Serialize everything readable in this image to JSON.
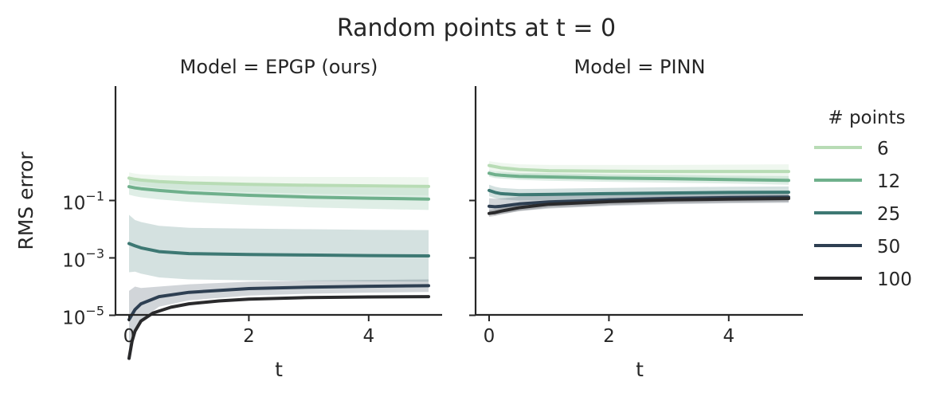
{
  "figure_title": "Random points at t = 0",
  "chart_data": [
    {
      "type": "line",
      "panel_title": "Model = EPGP (ours)",
      "xlabel": "t",
      "ylabel": "RMS error",
      "y_scale": "log",
      "xlim": [
        -0.25,
        5.25
      ],
      "ylim_log10": [
        -6.8,
        0.9
      ],
      "x_ticks": [
        0,
        2,
        4
      ],
      "y_ticks": [
        {
          "base": "10",
          "exp": "−1",
          "log10": -1
        },
        {
          "base": "10",
          "exp": "−3",
          "log10": -3
        },
        {
          "base": "10",
          "exp": "−5",
          "log10": -5
        }
      ],
      "series": [
        {
          "name": "6",
          "color": "#b8dcb5",
          "points": [
            [
              0,
              -0.22
            ],
            [
              0.1,
              -0.26
            ],
            [
              0.2,
              -0.29
            ],
            [
              0.5,
              -0.34
            ],
            [
              1,
              -0.39
            ],
            [
              2,
              -0.44
            ],
            [
              3,
              -0.47
            ],
            [
              4,
              -0.49
            ],
            [
              5,
              -0.51
            ]
          ],
          "band": [
            0.2,
            0.2,
            0.2,
            0.22,
            0.24,
            0.27,
            0.29,
            0.31,
            0.32
          ]
        },
        {
          "name": "12",
          "color": "#6fb08c",
          "points": [
            [
              0,
              -0.52
            ],
            [
              0.1,
              -0.56
            ],
            [
              0.2,
              -0.59
            ],
            [
              0.5,
              -0.65
            ],
            [
              1,
              -0.73
            ],
            [
              2,
              -0.82
            ],
            [
              3,
              -0.88
            ],
            [
              4,
              -0.92
            ],
            [
              5,
              -0.95
            ]
          ],
          "band": [
            0.28,
            0.29,
            0.3,
            0.31,
            0.32,
            0.34,
            0.36,
            0.37,
            0.38
          ]
        },
        {
          "name": "25",
          "color": "#3d7873",
          "points": [
            [
              0,
              -2.5
            ],
            [
              0.1,
              -2.58
            ],
            [
              0.2,
              -2.65
            ],
            [
              0.5,
              -2.78
            ],
            [
              1,
              -2.85
            ],
            [
              2,
              -2.88
            ],
            [
              3,
              -2.9
            ],
            [
              4,
              -2.92
            ],
            [
              5,
              -2.93
            ]
          ],
          "band": [
            1.0,
            0.9,
            0.9,
            0.9,
            0.9,
            0.9,
            0.9,
            0.9,
            0.9
          ]
        },
        {
          "name": "50",
          "color": "#2e3f52",
          "points": [
            [
              0,
              -5.15
            ],
            [
              0.1,
              -4.8
            ],
            [
              0.2,
              -4.6
            ],
            [
              0.5,
              -4.35
            ],
            [
              1,
              -4.2
            ],
            [
              2,
              -4.07
            ],
            [
              3,
              -4.02
            ],
            [
              4,
              -3.99
            ],
            [
              5,
              -3.97
            ]
          ],
          "band": [
            1.0,
            0.8,
            0.55,
            0.35,
            0.28,
            0.24,
            0.23,
            0.22,
            0.22
          ]
        },
        {
          "name": "100",
          "color": "#2a2a2c",
          "points": [
            [
              0,
              -6.5
            ],
            [
              0.05,
              -5.9
            ],
            [
              0.1,
              -5.55
            ],
            [
              0.2,
              -5.2
            ],
            [
              0.4,
              -4.92
            ],
            [
              0.7,
              -4.72
            ],
            [
              1,
              -4.6
            ],
            [
              1.5,
              -4.5
            ],
            [
              2,
              -4.44
            ],
            [
              3,
              -4.38
            ],
            [
              4,
              -4.36
            ],
            [
              5,
              -4.35
            ]
          ],
          "band": [
            0.05,
            0.05,
            0.05,
            0.04,
            0.04,
            0.03,
            0.03,
            0.03,
            0.03,
            0.03,
            0.03,
            0.03
          ]
        }
      ]
    },
    {
      "type": "line",
      "panel_title": "Model = PINN",
      "xlabel": "t",
      "ylabel": "",
      "y_scale": "log",
      "xlim": [
        -0.25,
        5.25
      ],
      "ylim_log10": [
        -6.8,
        0.9
      ],
      "x_ticks": [
        0,
        2,
        4
      ],
      "series": [
        {
          "name": "6",
          "color": "#b8dcb5",
          "points": [
            [
              0,
              0.22
            ],
            [
              0.1,
              0.18
            ],
            [
              0.2,
              0.14
            ],
            [
              0.5,
              0.08
            ],
            [
              1,
              0.04
            ],
            [
              2,
              0.02
            ],
            [
              3,
              0.01
            ],
            [
              4,
              0.01
            ],
            [
              5,
              0.01
            ]
          ],
          "band": [
            0.15,
            0.16,
            0.17,
            0.18,
            0.2,
            0.22,
            0.23,
            0.24,
            0.25
          ]
        },
        {
          "name": "12",
          "color": "#6fb08c",
          "points": [
            [
              0,
              -0.05
            ],
            [
              0.1,
              -0.1
            ],
            [
              0.2,
              -0.12
            ],
            [
              0.5,
              -0.16
            ],
            [
              1,
              -0.18
            ],
            [
              2,
              -0.22
            ],
            [
              3,
              -0.24
            ],
            [
              4,
              -0.27
            ],
            [
              5,
              -0.3
            ]
          ],
          "band": [
            0.12,
            0.12,
            0.12,
            0.12,
            0.13,
            0.13,
            0.14,
            0.14,
            0.15
          ]
        },
        {
          "name": "25",
          "color": "#3d7873",
          "points": [
            [
              0,
              -0.65
            ],
            [
              0.1,
              -0.72
            ],
            [
              0.2,
              -0.76
            ],
            [
              0.5,
              -0.8
            ],
            [
              1,
              -0.79
            ],
            [
              2,
              -0.76
            ],
            [
              3,
              -0.74
            ],
            [
              4,
              -0.72
            ],
            [
              5,
              -0.71
            ]
          ],
          "band": [
            0.2,
            0.2,
            0.2,
            0.2,
            0.2,
            0.2,
            0.2,
            0.2,
            0.2
          ]
        },
        {
          "name": "50",
          "color": "#2e3f52",
          "points": [
            [
              0,
              -1.2
            ],
            [
              0.1,
              -1.22
            ],
            [
              0.2,
              -1.2
            ],
            [
              0.5,
              -1.12
            ],
            [
              1,
              -1.05
            ],
            [
              2,
              -0.98
            ],
            [
              3,
              -0.93
            ],
            [
              4,
              -0.9
            ],
            [
              5,
              -0.88
            ]
          ],
          "band": [
            0.28,
            0.28,
            0.27,
            0.25,
            0.23,
            0.21,
            0.2,
            0.2,
            0.2
          ]
        },
        {
          "name": "100",
          "color": "#2a2a2c",
          "points": [
            [
              0,
              -1.45
            ],
            [
              0.1,
              -1.42
            ],
            [
              0.2,
              -1.37
            ],
            [
              0.5,
              -1.25
            ],
            [
              1,
              -1.13
            ],
            [
              2,
              -1.04
            ],
            [
              3,
              -0.98
            ],
            [
              4,
              -0.95
            ],
            [
              5,
              -0.93
            ]
          ],
          "band": [
            0.12,
            0.12,
            0.12,
            0.12,
            0.12,
            0.12,
            0.12,
            0.12,
            0.12
          ]
        }
      ]
    }
  ],
  "legend": {
    "title": "# points",
    "placement": "right",
    "entries": [
      {
        "label": "6",
        "color": "#b8dcb5"
      },
      {
        "label": "12",
        "color": "#6fb08c"
      },
      {
        "label": "25",
        "color": "#3d7873"
      },
      {
        "label": "50",
        "color": "#2e3f52"
      },
      {
        "label": "100",
        "color": "#2a2a2c"
      }
    ]
  }
}
